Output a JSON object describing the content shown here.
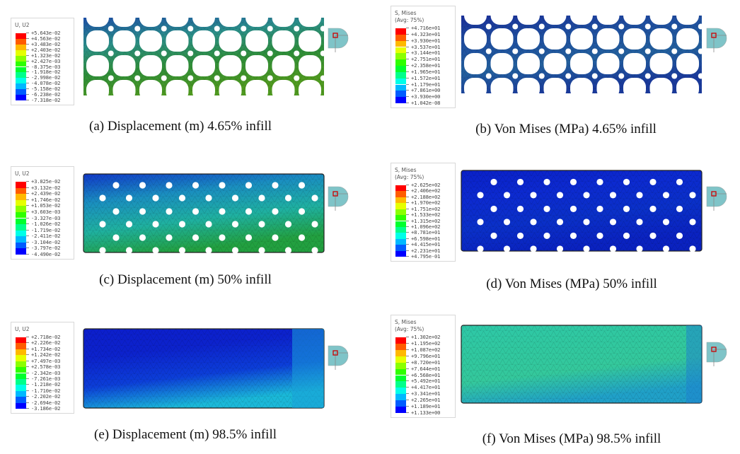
{
  "legend_colors": [
    "#ff0000",
    "#ff5c00",
    "#ffb900",
    "#e6ff00",
    "#8bff00",
    "#2eff00",
    "#00ff2e",
    "#00ff8b",
    "#00ffe8",
    "#00b9ff",
    "#005cff",
    "#0000ff"
  ],
  "panels": [
    {
      "caption": "(a) Displacement (m) 4.65% infill",
      "legend": {
        "title": [
          "U, U2"
        ],
        "values": [
          "+5.643e-02",
          "+4.563e-02",
          "+3.483e-02",
          "+2.403e-02",
          "+1.323e-02",
          "+2.427e-03",
          "-8.375e-03",
          "-1.918e-02",
          "-2.998e-02",
          "-4.078e-02",
          "-5.158e-02",
          "-6.238e-02",
          "-7.318e-02"
        ]
      },
      "geometry": "lattice",
      "colors": [
        "#1d4fa8",
        "#2b8f8a",
        "#2f8f3a",
        "#4f9a20"
      ]
    },
    {
      "caption": "(b) Von Mises (MPa) 4.65% infill",
      "legend": {
        "title": [
          "S, Mises",
          "(Avg: 75%)"
        ],
        "values": [
          "+4.716e+01",
          "+4.323e+01",
          "+3.930e+01",
          "+3.537e+01",
          "+3.144e+01",
          "+2.751e+01",
          "+2.358e+01",
          "+1.965e+01",
          "+1.572e+01",
          "+1.179e+01",
          "+7.861e+00",
          "+3.930e+00",
          "+1.042e-08"
        ]
      },
      "geometry": "lattice",
      "colors": [
        "#1a2f9a",
        "#1f4fa0",
        "#23609e",
        "#1a3a9c"
      ]
    },
    {
      "caption": "(c) Displacement (m) 50% infill",
      "legend": {
        "title": [
          "U, U2"
        ],
        "values": [
          "+3.825e-02",
          "+3.132e-02",
          "+2.439e-02",
          "+1.746e-02",
          "+1.053e-02",
          "+3.603e-03",
          "-3.327e-03",
          "-1.026e-02",
          "-1.719e-02",
          "-2.411e-02",
          "-3.104e-02",
          "-3.797e-02",
          "-4.490e-02"
        ]
      },
      "geometry": "holes",
      "colors": [
        "#1038c8",
        "#1a8ec0",
        "#1fb0a0",
        "#22a040"
      ]
    },
    {
      "caption": "(d) Von Mises (MPa) 50% infill",
      "legend": {
        "title": [
          "S, Mises",
          "(Avg: 75%)"
        ],
        "values": [
          "+2.625e+02",
          "+2.406e+02",
          "+2.188e+02",
          "+1.970e+02",
          "+1.751e+02",
          "+1.533e+02",
          "+1.315e+02",
          "+1.096e+02",
          "+8.781e+01",
          "+6.598e+01",
          "+4.415e+01",
          "+2.231e+01",
          "+4.795e-01"
        ]
      },
      "geometry": "holes",
      "colors": [
        "#0a20c8",
        "#0c2ad0",
        "#0a30c8",
        "#0a22c0"
      ]
    },
    {
      "caption": "(e) Displacement (m) 98.5% infill",
      "legend": {
        "title": [
          "U, U2"
        ],
        "values": [
          "+2.718e-02",
          "+2.226e-02",
          "+1.734e-02",
          "+1.242e-02",
          "+7.497e-03",
          "+2.578e-03",
          "-2.342e-03",
          "-7.261e-03",
          "-1.218e-02",
          "-1.710e-02",
          "-2.202e-02",
          "-2.694e-02",
          "-3.186e-02"
        ]
      },
      "geometry": "solid",
      "colors": [
        "#0c1ecc",
        "#0c22cc",
        "#0c3ed8",
        "#1ab8d8"
      ]
    },
    {
      "caption": "(f) Von Mises (MPa) 98.5% infill",
      "legend": {
        "title": [
          "S, Mises",
          "(Avg: 75%)"
        ],
        "values": [
          "+1.302e+02",
          "+1.195e+02",
          "+1.087e+02",
          "+9.796e+01",
          "+8.720e+01",
          "+7.644e+01",
          "+6.568e+01",
          "+5.492e+01",
          "+4.417e+01",
          "+3.341e+01",
          "+2.265e+01",
          "+1.189e+01",
          "+1.133e+00"
        ]
      },
      "geometry": "solid",
      "colors": [
        "#2ec8a8",
        "#30c8a0",
        "#34c89c",
        "#20a0c8"
      ]
    }
  ]
}
